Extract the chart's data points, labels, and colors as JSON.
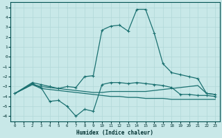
{
  "xlabel": "Humidex (Indice chaleur)",
  "bg_color": "#c8e8e8",
  "grid_color": "#b0d8d8",
  "line_color": "#1a7070",
  "xlim": [
    -0.5,
    23.5
  ],
  "ylim": [
    -6.5,
    5.5
  ],
  "xticks": [
    0,
    1,
    2,
    3,
    4,
    5,
    6,
    7,
    8,
    9,
    10,
    11,
    12,
    13,
    14,
    15,
    16,
    17,
    18,
    19,
    20,
    21,
    22,
    23
  ],
  "yticks": [
    -6,
    -5,
    -4,
    -3,
    -2,
    -1,
    0,
    1,
    2,
    3,
    4,
    5
  ],
  "line1_x": [
    0,
    2,
    3,
    4,
    5,
    6,
    7,
    8,
    9,
    10,
    11,
    12,
    13,
    14,
    15,
    16,
    17,
    18,
    19,
    20,
    21,
    22,
    23
  ],
  "line1_y": [
    -3.7,
    -2.6,
    -2.8,
    -3.0,
    -3.2,
    -3.0,
    -3.1,
    -2.0,
    -1.9,
    2.7,
    3.1,
    3.2,
    2.6,
    4.8,
    4.8,
    2.4,
    -0.7,
    -1.6,
    -1.8,
    -2.0,
    -2.2,
    -3.7,
    -3.8
  ],
  "line2_x": [
    0,
    2,
    3,
    4,
    5,
    6,
    7,
    8,
    9,
    10,
    11,
    12,
    13,
    14,
    15,
    16,
    17,
    18,
    19,
    20,
    21,
    22,
    23
  ],
  "line2_y": [
    -3.7,
    -2.7,
    -3.1,
    -4.5,
    -4.4,
    -5.0,
    -6.0,
    -5.3,
    -5.5,
    -2.8,
    -2.6,
    -2.6,
    -2.7,
    -2.6,
    -2.7,
    -2.8,
    -2.9,
    -3.1,
    -3.8,
    -3.8,
    -3.9,
    -3.9,
    -4.0
  ],
  "line3_x": [
    0,
    2,
    3,
    4,
    5,
    6,
    7,
    8,
    9,
    10,
    11,
    12,
    13,
    14,
    15,
    16,
    17,
    18,
    19,
    20,
    21,
    22,
    23
  ],
  "line3_y": [
    -3.7,
    -2.8,
    -3.0,
    -3.1,
    -3.2,
    -3.3,
    -3.4,
    -3.5,
    -3.6,
    -3.6,
    -3.5,
    -3.5,
    -3.5,
    -3.5,
    -3.5,
    -3.4,
    -3.3,
    -3.2,
    -3.1,
    -3.0,
    -2.9,
    -3.7,
    -3.8
  ],
  "line4_x": [
    0,
    2,
    3,
    4,
    5,
    6,
    7,
    8,
    9,
    10,
    11,
    12,
    13,
    14,
    15,
    16,
    17,
    18,
    19,
    20,
    21,
    22,
    23
  ],
  "line4_y": [
    -3.7,
    -2.8,
    -3.2,
    -3.3,
    -3.4,
    -3.5,
    -3.6,
    -3.7,
    -3.8,
    -3.9,
    -4.0,
    -4.0,
    -4.1,
    -4.1,
    -4.2,
    -4.2,
    -4.2,
    -4.3,
    -4.3,
    -4.3,
    -4.3,
    -4.3,
    -4.3
  ]
}
